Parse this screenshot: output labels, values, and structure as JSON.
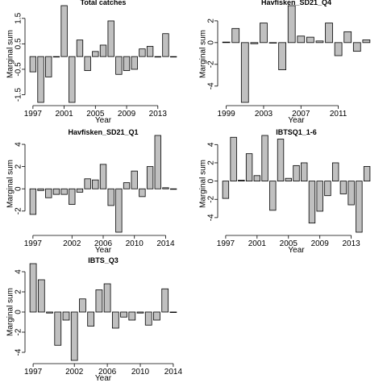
{
  "chart_data": [
    {
      "type": "bar",
      "title": "Total catches",
      "xlabel": "Year",
      "ylabel": "Marginal sum",
      "x": [
        1997,
        1998,
        1999,
        2000,
        2001,
        2002,
        2003,
        2004,
        2005,
        2006,
        2007,
        2008,
        2009,
        2010,
        2011,
        2012,
        2013,
        2014,
        2015
      ],
      "values": [
        -0.6,
        -1.8,
        -0.8,
        0.0,
        2.0,
        -1.8,
        0.65,
        -0.55,
        0.2,
        0.45,
        1.4,
        -0.7,
        -0.55,
        -0.5,
        0.3,
        0.4,
        -0.02,
        0.9,
        0.0
      ],
      "ylim": [
        -1.8,
        2.0
      ],
      "yticks": [
        -1.5,
        -0.5,
        0.5,
        1.5
      ],
      "xticks": [
        1997,
        2001,
        2005,
        2009,
        2013
      ],
      "color": "#c0c0c0"
    },
    {
      "type": "bar",
      "title": "Havfisken_SD21_Q4",
      "xlabel": "Year",
      "ylabel": "Marginal sum",
      "x": [
        1999,
        2000,
        2001,
        2002,
        2003,
        2004,
        2005,
        2006,
        2007,
        2008,
        2009,
        2010,
        2011,
        2012,
        2013,
        2014
      ],
      "values": [
        0.05,
        1.3,
        -5.5,
        -0.1,
        1.8,
        0.0,
        -2.5,
        3.4,
        0.6,
        0.5,
        0.15,
        1.8,
        -1.2,
        1.0,
        -0.8,
        0.25
      ],
      "ylim": [
        -5.5,
        3.4
      ],
      "yticks": [
        -4,
        -2,
        0,
        2
      ],
      "xticks": [
        1999,
        2003,
        2007,
        2011
      ],
      "color": "#c0c0c0"
    },
    {
      "type": "bar",
      "title": "Havfisken_SD21_Q1",
      "xlabel": "Year",
      "ylabel": "Marginal sum",
      "x": [
        1997,
        1998,
        1999,
        2000,
        2001,
        2002,
        2003,
        2004,
        2005,
        2006,
        2007,
        2008,
        2009,
        2010,
        2011,
        2012,
        2013,
        2014,
        2015
      ],
      "values": [
        -2.3,
        -0.15,
        -0.8,
        -0.5,
        -0.5,
        -1.4,
        -0.3,
        0.9,
        0.8,
        2.2,
        -1.5,
        -3.9,
        0.55,
        1.6,
        -0.7,
        2.0,
        4.8,
        0.1,
        0.0
      ],
      "ylim": [
        -3.9,
        4.8
      ],
      "yticks": [
        -2,
        0,
        2,
        4
      ],
      "xticks": [
        1997,
        2002,
        2006,
        2010,
        2014
      ],
      "color": "#c0c0c0"
    },
    {
      "type": "bar",
      "title": "IBTSQ1_1-6",
      "xlabel": "Year",
      "ylabel": "Marginal sum",
      "x": [
        1997,
        1998,
        1999,
        2000,
        2001,
        2002,
        2003,
        2004,
        2005,
        2006,
        2007,
        2008,
        2009,
        2010,
        2011,
        2012,
        2013,
        2014,
        2015
      ],
      "values": [
        -1.9,
        4.8,
        0.1,
        3.0,
        0.6,
        5.0,
        -3.2,
        4.6,
        0.3,
        1.7,
        2.0,
        -4.6,
        -3.3,
        -1.6,
        2.0,
        -1.4,
        -2.6,
        -5.6,
        1.6
      ],
      "ylim": [
        -5.6,
        5.0
      ],
      "yticks": [
        -4,
        -2,
        0,
        2,
        4
      ],
      "xticks": [
        1997,
        2001,
        2005,
        2009,
        2013
      ],
      "color": "#c0c0c0"
    },
    {
      "type": "bar",
      "title": "IBTS_Q3",
      "xlabel": "Year",
      "ylabel": "Marginal sum",
      "x": [
        1997,
        1998,
        1999,
        2000,
        2001,
        2002,
        2003,
        2004,
        2005,
        2006,
        2007,
        2008,
        2009,
        2010,
        2011,
        2012,
        2013,
        2014
      ],
      "values": [
        4.8,
        3.2,
        -0.1,
        -3.3,
        -0.8,
        -4.8,
        1.3,
        -1.4,
        2.2,
        2.8,
        -1.6,
        -0.5,
        -0.8,
        -0.1,
        -1.3,
        -0.8,
        2.3,
        0.0
      ],
      "ylim": [
        -4.8,
        4.8
      ],
      "yticks": [
        -4,
        -2,
        0,
        2,
        4
      ],
      "xticks": [
        1997,
        2002,
        2006,
        2010,
        2014
      ],
      "color": "#c0c0c0"
    }
  ]
}
